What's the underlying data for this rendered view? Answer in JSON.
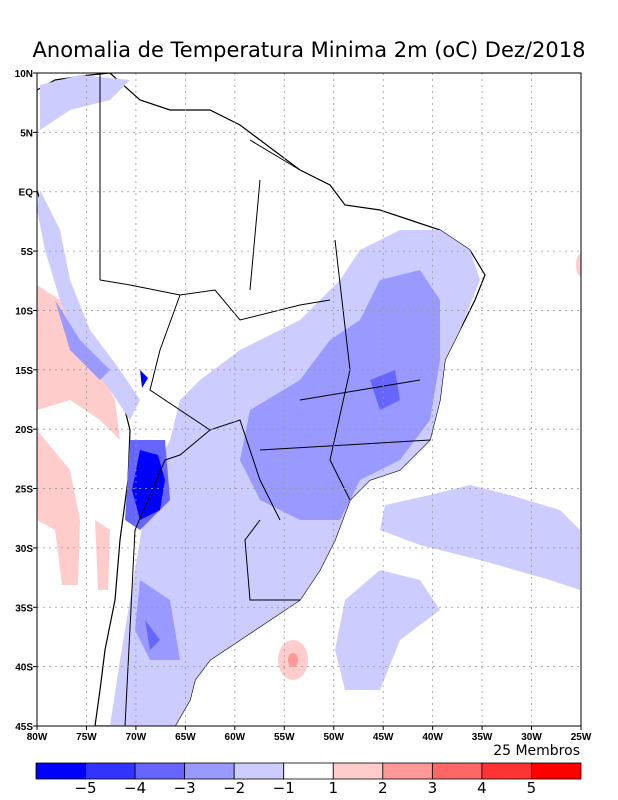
{
  "title": "Anomalia de Temperatura Minima 2m (oC) Dez/2018",
  "members_label": "25 Membros",
  "chart_data": {
    "type": "heatmap",
    "title": "Anomalia de Temperatura Minima 2m (oC) Dez/2018",
    "lon_range": [
      -80,
      -25
    ],
    "lat_range": [
      -45,
      10
    ],
    "lon_ticks": [
      "80W",
      "75W",
      "70W",
      "65W",
      "60W",
      "55W",
      "50W",
      "45W",
      "40W",
      "35W",
      "30W",
      "25W"
    ],
    "lat_ticks": [
      "10N",
      "5N",
      "EQ",
      "5S",
      "10S",
      "15S",
      "20S",
      "25S",
      "30S",
      "35S",
      "40S",
      "45S"
    ],
    "colorbar": {
      "levels": [
        "-5",
        "-4",
        "-3",
        "-2",
        "-1",
        "1",
        "2",
        "3",
        "4",
        "5"
      ],
      "colors": [
        "#0000ff",
        "#3333ff",
        "#6666ff",
        "#9999ff",
        "#ccccff",
        "#ffffff",
        "#ffcccc",
        "#ff9999",
        "#ff6666",
        "#ff3333",
        "#ff0000"
      ]
    },
    "grid": true
  }
}
